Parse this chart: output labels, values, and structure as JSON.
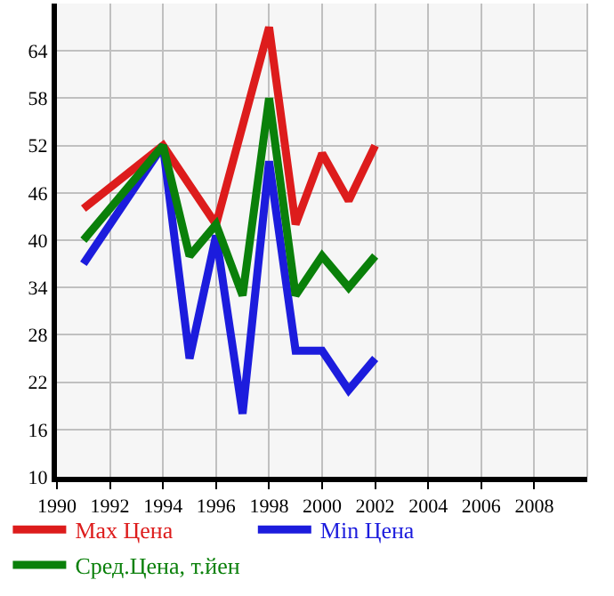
{
  "chart_data": {
    "type": "line",
    "x": [
      1991,
      1994,
      1995,
      1996,
      1997,
      1998,
      1999,
      2000,
      2001,
      2002
    ],
    "series": [
      {
        "name": "Max Цена",
        "color": "#dd1c1c",
        "x": [
          1991,
          1994,
          1995,
          1996,
          1998,
          1999,
          2000,
          2001,
          2002
        ],
        "values": [
          44,
          52,
          47,
          42,
          67,
          42,
          51,
          45,
          52
        ]
      },
      {
        "name": "Min Цена",
        "color": "#1c1cdd",
        "values": [
          37,
          52,
          25,
          40.6,
          18,
          50,
          26,
          26,
          21,
          25
        ]
      },
      {
        "name": "Сред.Цена, т.йен",
        "color": "#0a800a",
        "values": [
          40,
          52,
          38,
          42,
          33,
          58,
          33,
          38,
          34,
          38
        ]
      }
    ],
    "xlim": [
      1990,
      2010
    ],
    "xticks": [
      1990,
      1992,
      1994,
      1996,
      1998,
      2000,
      2002,
      2004,
      2006,
      2008
    ],
    "ylim": [
      10,
      70
    ],
    "yticks": [
      10,
      16,
      22,
      28,
      34,
      40,
      46,
      52,
      58,
      64
    ],
    "grid": true,
    "legend": "bottom",
    "marker": "none",
    "line_style": "solid"
  }
}
